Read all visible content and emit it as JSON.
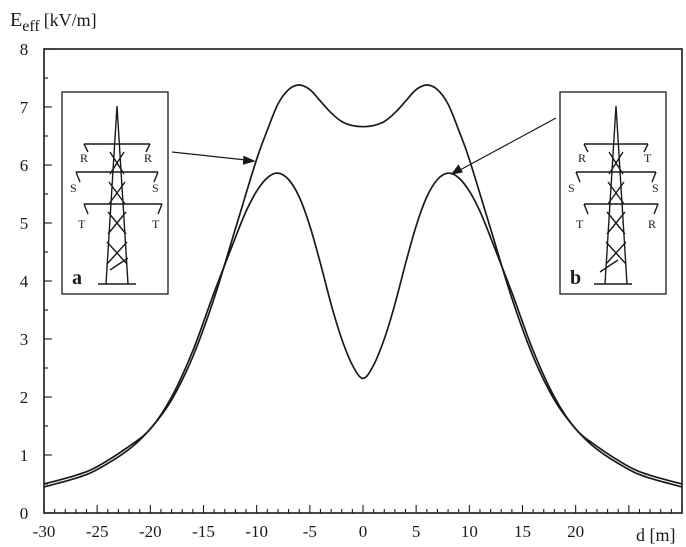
{
  "chart_data": {
    "type": "line",
    "title": "",
    "ylabel_main": "E",
    "ylabel_sub": "eff",
    "ylabel_unit": "[kV/m]",
    "xlabel": "d [m]",
    "xlim": [
      -30,
      30
    ],
    "ylim": [
      0,
      8
    ],
    "xticks": [
      -30,
      -25,
      -20,
      -15,
      -10,
      -5,
      0,
      5,
      10,
      15,
      20,
      25,
      30
    ],
    "xtick_labels": [
      "-30",
      "-25",
      "-20",
      "-15",
      "-10",
      "-5",
      "0",
      "5",
      "10",
      "15",
      "20",
      "",
      ""
    ],
    "yticks": [
      0,
      1,
      2,
      3,
      4,
      5,
      6,
      7,
      8
    ],
    "grid": false,
    "series": [
      {
        "x": [
          -30,
          -27,
          -25,
          -22,
          -20,
          -18,
          -16,
          -14,
          -12,
          -10,
          -9,
          -8,
          -7,
          -6,
          -5,
          -4,
          -3,
          -2,
          -1,
          0,
          1,
          2,
          3,
          4,
          5,
          6,
          7,
          8,
          9,
          10,
          12,
          14,
          16,
          18,
          20,
          22,
          25,
          27,
          30
        ],
        "y": [
          0.45,
          0.6,
          0.75,
          1.1,
          1.45,
          1.95,
          2.7,
          3.7,
          4.9,
          6.1,
          6.6,
          7.05,
          7.3,
          7.38,
          7.3,
          7.1,
          6.9,
          6.75,
          6.68,
          6.66,
          6.68,
          6.75,
          6.9,
          7.1,
          7.3,
          7.38,
          7.3,
          7.05,
          6.6,
          6.1,
          4.9,
          3.7,
          2.7,
          1.95,
          1.45,
          1.1,
          0.75,
          0.6,
          0.45
        ]
      },
      {
        "x": [
          -30,
          -27,
          -25,
          -22,
          -20,
          -18,
          -16,
          -14,
          -12,
          -11,
          -10,
          -9,
          -8,
          -7,
          -6,
          -5,
          -4,
          -3,
          -2,
          -1,
          0,
          1,
          2,
          3,
          4,
          5,
          6,
          7,
          8,
          9,
          10,
          11,
          12,
          14,
          16,
          18,
          20,
          22,
          25,
          27,
          30
        ],
        "y": [
          0.5,
          0.65,
          0.8,
          1.15,
          1.45,
          2.0,
          2.8,
          3.8,
          4.75,
          5.2,
          5.55,
          5.78,
          5.86,
          5.75,
          5.45,
          4.95,
          4.3,
          3.6,
          3.0,
          2.55,
          2.32,
          2.55,
          3.0,
          3.6,
          4.3,
          4.95,
          5.45,
          5.75,
          5.86,
          5.78,
          5.55,
          5.2,
          4.75,
          3.8,
          2.8,
          2.0,
          1.45,
          1.15,
          0.8,
          0.65,
          0.5
        ]
      }
    ],
    "insets": [
      {
        "letter": "a",
        "left_phases": [
          "R",
          "S",
          "T"
        ],
        "right_phases": [
          "R",
          "S",
          "T"
        ]
      },
      {
        "letter": "b",
        "left_phases": [
          "R",
          "S",
          "T"
        ],
        "right_phases": [
          "T",
          "S",
          "R"
        ]
      }
    ]
  }
}
